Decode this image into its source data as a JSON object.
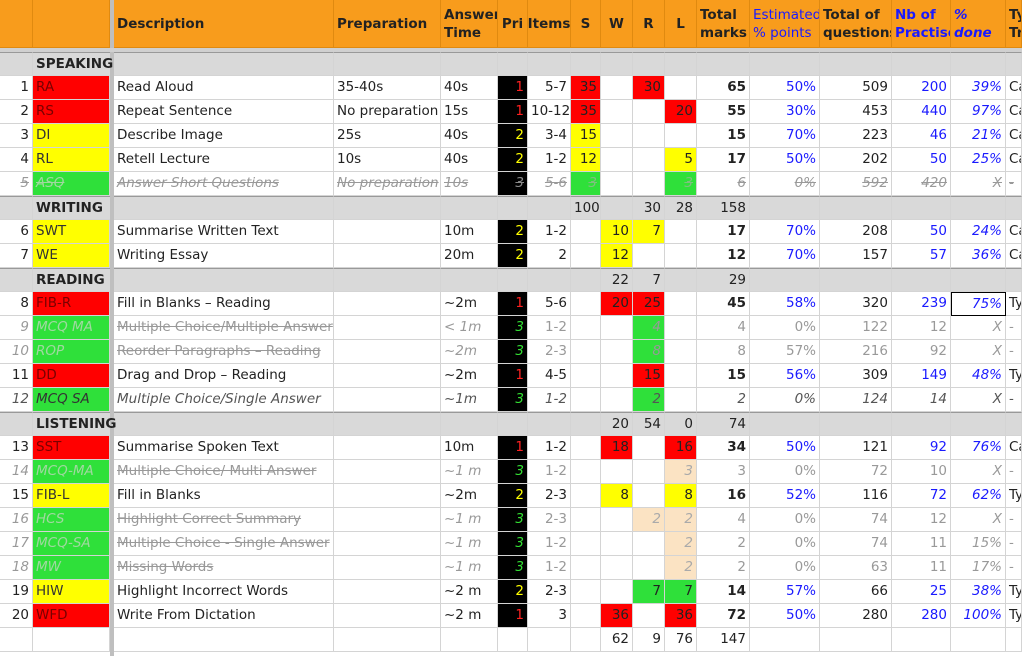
{
  "header": {
    "columns": [
      "Description",
      "Preparation",
      "Answer\nTime",
      "Pri",
      "Items",
      "S",
      "W",
      "R",
      "L",
      "Total\nmarks",
      "Estimated\n% points",
      "Total of\nquestions",
      "Nb of\nPractise",
      "% done",
      "Ty\nTr"
    ]
  },
  "sections": [
    {
      "name": "SPEAKING",
      "rows": [
        {
          "num": 1,
          "code": "RA",
          "description": "Read Aloud",
          "preparation": "35-40s",
          "answer_time": "40s",
          "priority": 1,
          "items": "5-7",
          "s": 35,
          "w": null,
          "r": 30,
          "l": null,
          "total_marks": 65,
          "estimated_points": "50%",
          "total_questions": 509,
          "practised": 200,
          "done": "39%",
          "type": "Ca"
        },
        {
          "num": 2,
          "code": "RS",
          "description": "Repeat Sentence",
          "preparation": "No preparation",
          "answer_time": "15s",
          "priority": 1,
          "items": "10-12",
          "s": 35,
          "w": null,
          "r": null,
          "l": 20,
          "total_marks": 55,
          "estimated_points": "30%",
          "total_questions": 453,
          "practised": 440,
          "done": "97%",
          "type": "Ca"
        },
        {
          "num": 3,
          "code": "DI",
          "description": "Describe Image",
          "preparation": "25s",
          "answer_time": "40s",
          "priority": 2,
          "items": "3-4",
          "s": 15,
          "w": null,
          "r": null,
          "l": null,
          "total_marks": 15,
          "estimated_points": "70%",
          "total_questions": 223,
          "practised": 46,
          "done": "21%",
          "type": "Ca"
        },
        {
          "num": 4,
          "code": "RL",
          "description": "Retell Lecture",
          "preparation": "10s",
          "answer_time": "40s",
          "priority": 2,
          "items": "1-2",
          "s": 12,
          "w": null,
          "r": null,
          "l": 5,
          "total_marks": 17,
          "estimated_points": "50%",
          "total_questions": 202,
          "practised": 50,
          "done": "25%",
          "type": "Ca"
        },
        {
          "num": 5,
          "code": "ASQ",
          "description": "Answer Short Questions",
          "preparation": "No preparation",
          "answer_time": "10s",
          "priority": 3,
          "items": "5-6",
          "s": 3,
          "w": null,
          "r": null,
          "l": 3,
          "total_marks": 6,
          "estimated_points": "0%",
          "total_questions": 592,
          "practised": 420,
          "done": "X",
          "type": "-"
        }
      ],
      "totals": {
        "s": 100,
        "w": null,
        "r": 30,
        "l": 28,
        "total_marks": 158
      }
    },
    {
      "name": "WRITING",
      "rows": [
        {
          "num": 6,
          "code": "SWT",
          "description": "Summarise Written Text",
          "preparation": null,
          "answer_time": "10m",
          "priority": 2,
          "items": "1-2",
          "s": null,
          "w": 10,
          "r": 7,
          "l": null,
          "total_marks": 17,
          "estimated_points": "70%",
          "total_questions": 208,
          "practised": 50,
          "done": "24%",
          "type": "Ca"
        },
        {
          "num": 7,
          "code": "WE",
          "description": "Writing Essay",
          "preparation": null,
          "answer_time": "20m",
          "priority": 2,
          "items": "2",
          "s": null,
          "w": 12,
          "r": null,
          "l": null,
          "total_marks": 12,
          "estimated_points": "70%",
          "total_questions": 157,
          "practised": 57,
          "done": "36%",
          "type": "Ca"
        }
      ],
      "totals": {
        "s": null,
        "w": 22,
        "r": 7,
        "l": null,
        "total_marks": 29
      }
    },
    {
      "name": "READING",
      "rows": [
        {
          "num": 8,
          "code": "FIB-R",
          "description": "Fill in Blanks – Reading",
          "preparation": null,
          "answer_time": "~2m",
          "priority": 1,
          "items": "5-6",
          "s": null,
          "w": 20,
          "r": 25,
          "l": null,
          "total_marks": 45,
          "estimated_points": "58%",
          "total_questions": 320,
          "practised": 239,
          "done": "75%",
          "type": "Ty"
        },
        {
          "num": 9,
          "code": "MCQ MA",
          "description": "Multiple Choice/Multiple Answer",
          "preparation": null,
          "answer_time": "< 1m",
          "priority": 3,
          "items": "1-2",
          "s": null,
          "w": null,
          "r": 4,
          "l": null,
          "total_marks": 4,
          "estimated_points": "0%",
          "total_questions": 122,
          "practised": 12,
          "done": "X",
          "type": "-"
        },
        {
          "num": 10,
          "code": "ROP",
          "description": "Reorder Paragraphs – Reading",
          "preparation": null,
          "answer_time": "~2m",
          "priority": 3,
          "items": "2-3",
          "s": null,
          "w": null,
          "r": 8,
          "l": null,
          "total_marks": 8,
          "estimated_points": "57%",
          "total_questions": 216,
          "practised": 92,
          "done": "X",
          "type": "-"
        },
        {
          "num": 11,
          "code": "DD",
          "description": "Drag and Drop – Reading",
          "preparation": null,
          "answer_time": "~2m",
          "priority": 1,
          "items": "4-5",
          "s": null,
          "w": null,
          "r": 15,
          "l": null,
          "total_marks": 15,
          "estimated_points": "56%",
          "total_questions": 309,
          "practised": 149,
          "done": "48%",
          "type": "Ty"
        },
        {
          "num": 12,
          "code": "MCQ SA",
          "description": "Multiple Choice/Single Answer",
          "preparation": null,
          "answer_time": "~1m",
          "priority": 3,
          "items": "1-2",
          "s": null,
          "w": null,
          "r": 2,
          "l": null,
          "total_marks": 2,
          "estimated_points": "0%",
          "total_questions": 124,
          "practised": 14,
          "done": "X",
          "type": "-"
        }
      ],
      "totals": {
        "s": null,
        "w": 20,
        "r": 54,
        "l": 0,
        "total_marks": 74
      }
    },
    {
      "name": "LISTENING",
      "rows": [
        {
          "num": 13,
          "code": "SST",
          "description": "Summarise Spoken Text",
          "preparation": null,
          "answer_time": "10m",
          "priority": 1,
          "items": "1-2",
          "s": null,
          "w": 18,
          "r": null,
          "l": 16,
          "total_marks": 34,
          "estimated_points": "50%",
          "total_questions": 121,
          "practised": 92,
          "done": "76%",
          "type": "Ca"
        },
        {
          "num": 14,
          "code": "MCQ-MA",
          "description": "Multiple Choice/ Multi Answer",
          "preparation": null,
          "answer_time": "~1 m",
          "priority": 3,
          "items": "1-2",
          "s": null,
          "w": null,
          "r": null,
          "l": 3,
          "total_marks": 3,
          "estimated_points": "0%",
          "total_questions": 72,
          "practised": 10,
          "done": "X",
          "type": "-"
        },
        {
          "num": 15,
          "code": "FIB-L",
          "description": "Fill in Blanks",
          "preparation": null,
          "answer_time": "~2m",
          "priority": 2,
          "items": "2-3",
          "s": null,
          "w": 8,
          "r": null,
          "l": 8,
          "total_marks": 16,
          "estimated_points": "52%",
          "total_questions": 116,
          "practised": 72,
          "done": "62%",
          "type": "Ty"
        },
        {
          "num": 16,
          "code": "HCS",
          "description": "Highlight Correct Summary",
          "preparation": null,
          "answer_time": "~1 m",
          "priority": 3,
          "items": "2-3",
          "s": null,
          "w": null,
          "r": 2,
          "l": 2,
          "total_marks": 4,
          "estimated_points": "0%",
          "total_questions": 74,
          "practised": 12,
          "done": "X",
          "type": "-"
        },
        {
          "num": 17,
          "code": "MCQ-SA",
          "description": "Multiple Choice - Single Answer",
          "preparation": null,
          "answer_time": "~1 m",
          "priority": 3,
          "items": "1-2",
          "s": null,
          "w": null,
          "r": null,
          "l": 2,
          "total_marks": 2,
          "estimated_points": "0%",
          "total_questions": 74,
          "practised": 11,
          "done": "15%",
          "type": "-"
        },
        {
          "num": 18,
          "code": "MW",
          "description": "Missing Words",
          "preparation": null,
          "answer_time": "~1 m",
          "priority": 3,
          "items": "1-2",
          "s": null,
          "w": null,
          "r": null,
          "l": 2,
          "total_marks": 2,
          "estimated_points": "0%",
          "total_questions": 63,
          "practised": 11,
          "done": "17%",
          "type": "-"
        },
        {
          "num": 19,
          "code": "HIW",
          "description": "Highlight Incorrect Words",
          "preparation": null,
          "answer_time": "~2 m",
          "priority": 2,
          "items": "2-3",
          "s": null,
          "w": null,
          "r": 7,
          "l": 7,
          "total_marks": 14,
          "estimated_points": "57%",
          "total_questions": 66,
          "practised": 25,
          "done": "38%",
          "type": "Ty"
        },
        {
          "num": 20,
          "code": "WFD",
          "description": "Write From Dictation",
          "preparation": null,
          "answer_time": "~2 m",
          "priority": 1,
          "items": "3",
          "s": null,
          "w": 36,
          "r": null,
          "l": 36,
          "total_marks": 72,
          "estimated_points": "50%",
          "total_questions": 280,
          "practised": 280,
          "done": "100%",
          "type": "Ty"
        }
      ],
      "totals": {
        "s": null,
        "w": 62,
        "r": 9,
        "l": 76,
        "total_marks": 147
      }
    }
  ]
}
